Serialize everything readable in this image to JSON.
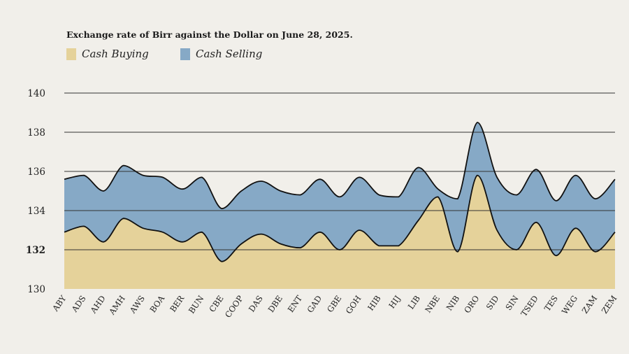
{
  "colors": {
    "buying": "#e5d29a",
    "selling": "#86a9c6",
    "line": "#111111",
    "grid": "#333333",
    "background": "#f1efea"
  },
  "chart_data": {
    "type": "area",
    "title": "Exchange rate of Birr against the Dollar on June 28, 2025.",
    "xlabel": "",
    "ylabel": "",
    "ylim": [
      130,
      140
    ],
    "yticks": [
      "130",
      "132",
      "134",
      "136",
      "138",
      "140"
    ],
    "highlight_tick": "132",
    "grid": true,
    "legend_position": "top-left",
    "categories": [
      "ABY",
      "ADS",
      "AHD",
      "AMH",
      "AWS",
      "BOA",
      "BER",
      "BUN",
      "CBE",
      "COOP",
      "DAS",
      "DBE",
      "ENT",
      "GAD",
      "GBE",
      "GOH",
      "HIB",
      "HIJ",
      "LIB",
      "NBE",
      "NIB",
      "ORO",
      "SID",
      "SIN",
      "TSED",
      "TES",
      "WEG",
      "ZAM",
      "ZEM"
    ],
    "series": [
      {
        "name": "Cash Buying",
        "values": [
          132.9,
          133.2,
          132.4,
          133.6,
          133.1,
          132.9,
          132.4,
          132.9,
          131.4,
          132.3,
          132.8,
          132.3,
          132.1,
          132.9,
          132.0,
          133.0,
          132.2,
          132.2,
          133.5,
          134.7,
          131.9,
          135.8,
          133.0,
          132.0,
          133.4,
          131.7,
          133.1,
          131.9,
          132.9
        ]
      },
      {
        "name": "Cash Selling",
        "values": [
          135.6,
          135.8,
          135.0,
          136.3,
          135.8,
          135.7,
          135.1,
          135.7,
          134.1,
          135.0,
          135.5,
          135.0,
          134.8,
          135.6,
          134.7,
          135.7,
          134.8,
          134.7,
          136.2,
          135.1,
          134.6,
          138.5,
          135.7,
          134.8,
          136.1,
          134.5,
          135.8,
          134.6,
          135.6
        ]
      }
    ]
  }
}
